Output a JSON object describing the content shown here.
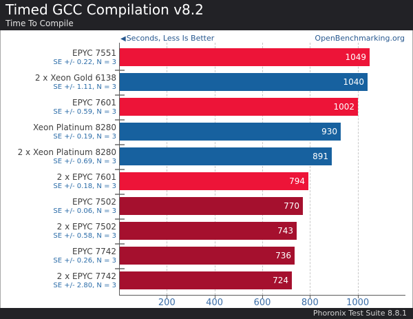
{
  "header": {
    "title": "Timed GCC Compilation v8.2",
    "subtitle": "Time To Compile"
  },
  "meta": {
    "arrow": "◀",
    "scale_note": "Seconds, Less Is Better",
    "site": "OpenBenchmarking.org"
  },
  "footer": {
    "text": "Phoronix Test Suite 8.8.1"
  },
  "colors": {
    "red": "#ed1438",
    "blue": "#17619f",
    "dark_red": "#a5102e",
    "header_bg": "#222226",
    "accent_blue": "#27588f",
    "tick_blue": "#3a6ca6"
  },
  "chart_data": {
    "type": "bar",
    "orientation": "horizontal",
    "title": "Timed GCC Compilation v8.2",
    "subtitle": "Time To Compile",
    "xlabel": "Seconds, Less Is Better",
    "xlim": [
      0,
      1200
    ],
    "xticks": [
      200,
      400,
      600,
      800,
      1000
    ],
    "grid": "dashed-vertical",
    "value_labels": "inside-end",
    "rows": [
      {
        "label": "EPYC 7551",
        "se": "SE +/- 0.22, N = 3",
        "value": 1049,
        "color": "red"
      },
      {
        "label": "2 x Xeon Gold 6138",
        "se": "SE +/- 1.11, N = 3",
        "value": 1040,
        "color": "blue"
      },
      {
        "label": "EPYC 7601",
        "se": "SE +/- 0.59, N = 3",
        "value": 1002,
        "color": "red"
      },
      {
        "label": "Xeon Platinum 8280",
        "se": "SE +/- 0.19, N = 3",
        "value": 930,
        "color": "blue"
      },
      {
        "label": "2 x Xeon Platinum 8280",
        "se": "SE +/- 0.69, N = 3",
        "value": 891,
        "color": "blue"
      },
      {
        "label": "2 x EPYC 7601",
        "se": "SE +/- 0.18, N = 3",
        "value": 794,
        "color": "red"
      },
      {
        "label": "EPYC 7502",
        "se": "SE +/- 0.06, N = 3",
        "value": 770,
        "color": "dark_red"
      },
      {
        "label": "2 x EPYC 7502",
        "se": "SE +/- 0.58, N = 3",
        "value": 743,
        "color": "dark_red"
      },
      {
        "label": "EPYC 7742",
        "se": "SE +/- 0.26, N = 3",
        "value": 736,
        "color": "dark_red"
      },
      {
        "label": "2 x EPYC 7742",
        "se": "SE +/- 2.80, N = 3",
        "value": 724,
        "color": "dark_red"
      }
    ]
  }
}
